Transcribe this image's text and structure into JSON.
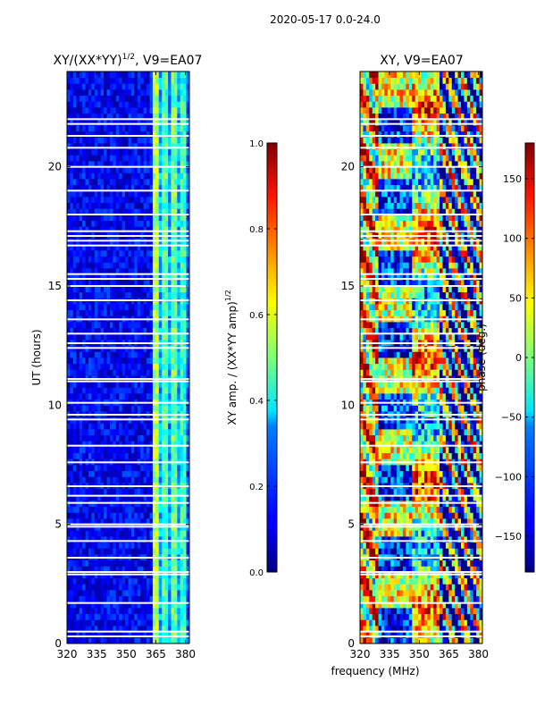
{
  "figure_title": "2020-05-17 0.0-24.0",
  "colors": {
    "background": "#ffffff",
    "axis": "#000000"
  },
  "chart_data": [
    {
      "type": "heatmap",
      "title_html_parts": [
        "XY/(XX*YY)",
        "1/2",
        ", V9=EA07"
      ],
      "title": "XY/(XX*YY)^1/2, V9=EA07",
      "xlabel": "",
      "ylabel": "UT (hours)",
      "xlim": [
        320,
        382
      ],
      "ylim": [
        0,
        24
      ],
      "xticks": [
        320,
        335,
        350,
        365,
        380
      ],
      "yticks": [
        0,
        5,
        10,
        15,
        20
      ],
      "colormap": "jet",
      "colorbar": {
        "label_parts": [
          "XY amp. / (XX*YY amp)",
          "1/2"
        ],
        "label": "XY amp. / (XX*YY amp)^1/2",
        "range": [
          0.0,
          1.0
        ],
        "ticks": [
          0.0,
          0.2,
          0.4,
          0.6,
          0.8,
          1.0
        ],
        "tick_labels": [
          "0.0",
          "0.2",
          "0.4",
          "0.6",
          "0.8",
          "1.0"
        ]
      },
      "gap_hours": [
        0.3,
        0.5,
        1.7,
        2.9,
        3.0,
        3.6,
        4.3,
        4.9,
        5.0,
        5.9,
        6.2,
        6.6,
        7.6,
        8.3,
        9.4,
        9.6,
        10.1,
        11.0,
        11.1,
        12.4,
        12.6,
        13.0,
        13.6,
        14.4,
        15.0,
        15.3,
        15.5,
        16.7,
        16.9,
        17.1,
        17.3,
        18.0,
        19.0,
        20.0,
        20.8,
        21.3,
        21.8,
        22.0
      ],
      "band_profile": [
        {
          "from": 320,
          "to": 363,
          "value": 0.12
        },
        {
          "from": 363,
          "to": 366,
          "value": 0.55
        },
        {
          "from": 366,
          "to": 368,
          "value": 0.3
        },
        {
          "from": 368,
          "to": 371,
          "value": 0.45
        },
        {
          "from": 371,
          "to": 373,
          "value": 0.28
        },
        {
          "from": 373,
          "to": 376,
          "value": 0.48
        },
        {
          "from": 376,
          "to": 378,
          "value": 0.3
        },
        {
          "from": 378,
          "to": 381,
          "value": 0.42
        },
        {
          "from": 381,
          "to": 382,
          "value": 0.2
        }
      ]
    },
    {
      "type": "heatmap",
      "title": "XY, V9=EA07",
      "xlabel": "frequency (MHz)",
      "ylabel": "",
      "xlim": [
        320,
        382
      ],
      "ylim": [
        0,
        24
      ],
      "xticks": [
        320,
        335,
        350,
        365,
        380
      ],
      "yticks": [
        0,
        5,
        10,
        15,
        20
      ],
      "colormap": "jet",
      "colorbar": {
        "label": "phase (deg.)",
        "range": [
          -180,
          180
        ],
        "ticks": [
          -150,
          -100,
          -50,
          0,
          50,
          100,
          150
        ],
        "tick_labels": [
          "−150",
          "−100",
          "−50",
          "0",
          "50",
          "100",
          "150"
        ]
      },
      "gap_hours": [
        0.3,
        0.5,
        1.7,
        2.9,
        3.0,
        3.6,
        4.3,
        4.9,
        5.0,
        5.9,
        6.2,
        6.6,
        7.6,
        8.3,
        9.4,
        9.6,
        10.1,
        11.0,
        11.1,
        12.4,
        12.6,
        13.0,
        13.6,
        14.4,
        15.0,
        15.3,
        15.5,
        16.7,
        16.9,
        17.1,
        17.3,
        18.0,
        19.0,
        20.0,
        20.8,
        21.3,
        21.8,
        22.0
      ]
    }
  ]
}
